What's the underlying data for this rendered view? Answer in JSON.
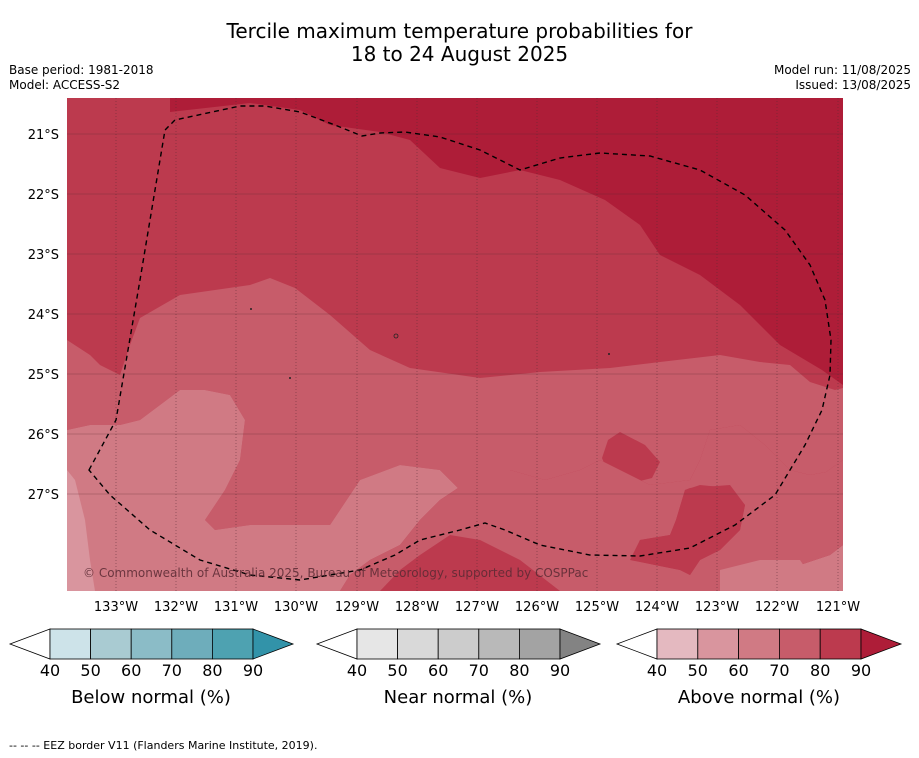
{
  "title_line1": "Tercile maximum temperature probabilities for",
  "title_line2": "18 to 24 August 2025",
  "base_period": "Base period: 1981-2018",
  "model": "Model: ACCESS-S2",
  "model_run": "Model run: 11/08/2025",
  "issued": "Issued: 13/08/2025",
  "copyright": "© Commonwealth of Australia 2025, Bureau of Meteorology, supported by COSPPac",
  "lat_labels": [
    "21°S",
    "22°S",
    "23°S",
    "24°S",
    "25°S",
    "26°S",
    "27°S"
  ],
  "lon_labels": [
    "133°W",
    "132°W",
    "131°W",
    "130°W",
    "129°W",
    "128°W",
    "127°W",
    "126°W",
    "125°W",
    "124°W",
    "123°W",
    "122°W",
    "121°W"
  ],
  "colorbars": [
    {
      "title": "Below normal (%)",
      "ticks": [
        "40",
        "50",
        "60",
        "70",
        "80",
        "90"
      ],
      "colors": [
        "#cde3e9",
        "#a9cbd2",
        "#8bbcc7",
        "#6eadbb",
        "#4ea2b1",
        "#3293a9"
      ]
    },
    {
      "title": "Near normal (%)",
      "ticks": [
        "40",
        "50",
        "60",
        "70",
        "80",
        "90"
      ],
      "colors": [
        "#e6e6e6",
        "#d9d9d9",
        "#cccccc",
        "#b9b9b9",
        "#a3a3a3",
        "#838383"
      ]
    },
    {
      "title": "Above normal (%)",
      "ticks": [
        "40",
        "50",
        "60",
        "70",
        "80",
        "90"
      ],
      "colors": [
        "#e4b9c0",
        "#d9959e",
        "#d07a84",
        "#c75c6a",
        "#bc3a4e",
        "#ae1d38"
      ]
    }
  ],
  "map_colors": {
    "p50": "#d9959e",
    "p60": "#d07a84",
    "p70": "#c75c6a",
    "p80": "#bc3a4e",
    "p90": "#ae1d38"
  },
  "footnote": "--  --  -- EEZ border V11 (Flanders Marine Institute, 2019)."
}
